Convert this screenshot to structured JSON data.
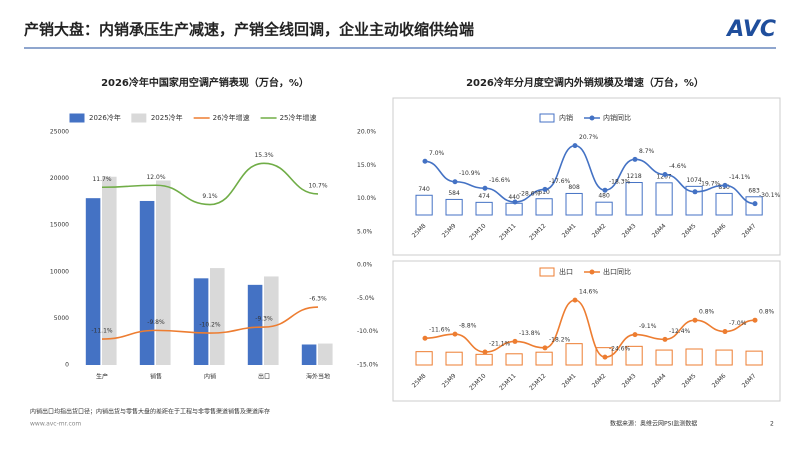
{
  "header": {
    "title": "产销大盘：内销承压生产减速，产销全线回调，企业主动收缩供给端",
    "logo": "AVC"
  },
  "footer": {
    "note": "内销出口均指出货口径；内销出货与零售大盘的差距在于工程与非零售渠道销售及渠道库存",
    "site": "www.avc-mr.com",
    "source": "数据来源：奥维云网PSI监测数据",
    "page": "2"
  },
  "chart_data": [
    {
      "type": "bar",
      "title": "2026冷年中国家用空调产销表现（万台，%）",
      "categories": [
        "生产",
        "销售",
        "内销",
        "出口",
        "海外当地"
      ],
      "series": [
        {
          "name": "2026冷年",
          "type": "bar",
          "color": "#4472c4",
          "values": [
            17900,
            17600,
            9300,
            8600,
            2200
          ]
        },
        {
          "name": "2025冷年",
          "type": "bar",
          "color": "#d9d9d9",
          "values": [
            20200,
            19800,
            10400,
            9500,
            2300
          ]
        },
        {
          "name": "26冷年增速",
          "type": "line",
          "axis": "y2",
          "color": "#ed7d31",
          "values": [
            -11.1,
            -9.8,
            -10.2,
            -9.3,
            -6.3
          ],
          "value_labels": [
            "-11.1%",
            "-9.8%",
            "-10.2%",
            "-9.3%",
            "-6.3%"
          ]
        },
        {
          "name": "25冷年增速",
          "type": "line",
          "axis": "y2",
          "color": "#70ad47",
          "values": [
            11.7,
            12.0,
            9.1,
            15.3,
            10.7
          ],
          "value_labels": [
            "11.7%",
            "12.0%",
            "9.1%",
            "15.3%",
            "10.7%"
          ]
        }
      ],
      "ylim": [
        0,
        25000
      ],
      "yticks": [
        0,
        5000,
        10000,
        15000,
        20000,
        25000
      ],
      "y2lim": [
        -15,
        20
      ],
      "y2ticks": [
        {
          "value": -15,
          "label": "-15.0%"
        },
        {
          "value": -10,
          "label": "-10.0%"
        },
        {
          "value": -5,
          "label": "-5.0%"
        },
        {
          "value": 0,
          "label": "0.0%"
        },
        {
          "value": 5,
          "label": "5.0%"
        },
        {
          "value": 10,
          "label": "10.0%"
        },
        {
          "value": 15,
          "label": "15.0%"
        },
        {
          "value": 20,
          "label": "20.0%"
        }
      ]
    },
    {
      "type": "bar",
      "title": "2026冷年分月度空调内外销规模及增速（万台，%）",
      "categories": [
        "25M8",
        "25M9",
        "25M10",
        "25M11",
        "25M12",
        "26M1",
        "26M2",
        "26M3",
        "26M4",
        "26M5",
        "26M6",
        "26M7"
      ],
      "series": [
        {
          "name": "内销",
          "type": "bar",
          "style": "outline",
          "color": "#4472c4",
          "data_labels": true,
          "values": [
            740,
            584,
            474,
            440,
            610,
            808,
            480,
            1218,
            1207,
            1074,
            810,
            683
          ]
        },
        {
          "name": "内销同比",
          "type": "line",
          "axis": "y2",
          "color": "#4472c4",
          "values": [
            7.0,
            -10.9,
            -16.6,
            -28.6,
            -17.6,
            20.7,
            -18.3,
            8.7,
            -4.6,
            -19.7,
            -14.1,
            -30.1
          ],
          "value_labels": [
            "7.0%",
            "-10.9%",
            "-16.6%",
            "-28.6%",
            "-17.6%",
            "20.7%",
            "-18.3%",
            "8.7%",
            "-4.6%",
            "-19.7%",
            "-14.1%",
            "-30.1%"
          ]
        }
      ],
      "ylim": [
        0,
        3000
      ],
      "y2lim": [
        -40,
        30
      ]
    },
    {
      "type": "bar",
      "categories": [
        "25M8",
        "25M9",
        "25M10",
        "25M11",
        "25M12",
        "26M1",
        "26M2",
        "26M3",
        "26M4",
        "26M5",
        "26M6",
        "26M7"
      ],
      "series": [
        {
          "name": "出口",
          "type": "bar",
          "style": "outline",
          "color": "#ed7d31",
          "values": [
            500,
            480,
            400,
            420,
            480,
            800,
            650,
            700,
            560,
            600,
            560,
            520
          ]
        },
        {
          "name": "出口同比",
          "type": "line",
          "axis": "y2",
          "color": "#ed7d31",
          "values": [
            -11.6,
            -8.8,
            -21.1,
            -13.8,
            -18.2,
            14.6,
            -24.6,
            -9.1,
            -12.4,
            0.8,
            -7.0,
            0.8
          ],
          "value_labels": [
            "-11.6%",
            "-8.8%",
            "-21.1%",
            "-13.8%",
            "-18.2%",
            "14.6%",
            "-24.6%",
            "-9.1%",
            "-12.4%",
            "0.8%",
            "-7.0%",
            "0.8%"
          ]
        }
      ],
      "ylim": [
        0,
        3000
      ],
      "y2lim": [
        -30,
        25
      ]
    }
  ]
}
